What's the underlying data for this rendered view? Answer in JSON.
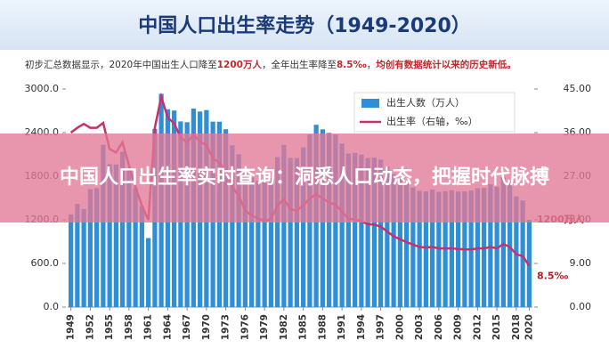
{
  "chart_data": {
    "type": "bar",
    "title": "中国人口出生率走势（1949-2020）",
    "subtitle_parts": [
      {
        "text": "初步汇总数据显示，2020年中国出生人口降至",
        "color": "#333333"
      },
      {
        "text": "1200万人",
        "color": "#c0282e"
      },
      {
        "text": "，全年出生率降至",
        "color": "#333333"
      },
      {
        "text": "8.5‰",
        "color": "#c0282e"
      },
      {
        "text": "，",
        "color": "#333333"
      },
      {
        "text": "均创有数据统计以来的历史新低。",
        "color": "#c0282e"
      }
    ],
    "x": [
      1949,
      1950,
      1951,
      1952,
      1953,
      1954,
      1955,
      1956,
      1957,
      1958,
      1959,
      1960,
      1961,
      1962,
      1963,
      1964,
      1965,
      1966,
      1967,
      1968,
      1969,
      1970,
      1971,
      1972,
      1973,
      1974,
      1975,
      1976,
      1977,
      1978,
      1979,
      1980,
      1981,
      1982,
      1983,
      1984,
      1985,
      1986,
      1987,
      1988,
      1989,
      1990,
      1991,
      1992,
      1993,
      1994,
      1995,
      1996,
      1997,
      1998,
      1999,
      2000,
      2001,
      2002,
      2003,
      2004,
      2005,
      2006,
      2007,
      2008,
      2009,
      2010,
      2011,
      2012,
      2013,
      2014,
      2015,
      2016,
      2017,
      2018,
      2019,
      2020
    ],
    "xticks": [
      1949,
      1952,
      1955,
      1958,
      1961,
      1964,
      1967,
      1970,
      1973,
      1976,
      1979,
      1982,
      1985,
      1988,
      1991,
      1994,
      1997,
      2000,
      2003,
      2006,
      2009,
      2012,
      2015,
      2018,
      2020
    ],
    "series": [
      {
        "name": "出生人数（万人）",
        "color": "#2e8fd8",
        "type": "bar",
        "values": [
          1275,
          1419,
          1349,
          1622,
          1637,
          2232,
          1965,
          1961,
          2138,
          1889,
          1635,
          1389,
          949,
          2451,
          2934,
          2721,
          2704,
          2554,
          2543,
          2731,
          2690,
          2710,
          2551,
          2550,
          2447,
          2226,
          2102,
          1849,
          1783,
          1733,
          1715,
          1776,
          2064,
          2230,
          2052,
          2050,
          2196,
          2374,
          2508,
          2445,
          2396,
          2374,
          2250,
          2113,
          2120,
          2098,
          2052,
          2057,
          2028,
          1934,
          1827,
          1771,
          1702,
          1647,
          1599,
          1593,
          1617,
          1584,
          1594,
          1608,
          1591,
          1592,
          1604,
          1635,
          1640,
          1687,
          1655,
          1786,
          1723,
          1523,
          1465,
          1200
        ]
      },
      {
        "name": "出生率（右轴，‰）",
        "color": "#c8306a",
        "type": "line",
        "axis": "y2",
        "values": [
          36,
          37,
          37.8,
          37,
          37,
          38,
          32.6,
          31.9,
          34,
          29.2,
          24.8,
          20.9,
          18,
          37,
          43.4,
          39.1,
          37.9,
          35,
          34,
          35.6,
          34.1,
          33.4,
          30.7,
          29.8,
          27.9,
          24.8,
          23,
          19.9,
          18.9,
          18.3,
          17.8,
          18.2,
          20.9,
          22.3,
          20.2,
          19.9,
          21,
          22.4,
          23.3,
          22.4,
          21.6,
          21.1,
          19.7,
          18.2,
          18.1,
          17.7,
          17.1,
          17,
          16.6,
          15.6,
          14.6,
          14,
          13.4,
          12.9,
          12.4,
          12.3,
          12.4,
          12.1,
          12.1,
          12.1,
          12,
          11.9,
          11.9,
          12.1,
          12.1,
          12.4,
          12.1,
          13,
          12.4,
          10.9,
          10.5,
          8.5
        ]
      }
    ],
    "ylim": [
      0,
      3000
    ],
    "yticks": [
      {
        "value": 0,
        "label": "0.0"
      },
      {
        "value": 600,
        "label": "600.0"
      },
      {
        "value": 1200,
        "label": "1200.0"
      },
      {
        "value": 1800,
        "label": "1800.0"
      },
      {
        "value": 2400,
        "label": "2400.0"
      },
      {
        "value": 3000,
        "label": "3000.0"
      }
    ],
    "y2lim": [
      0,
      45
    ],
    "y2ticks": [
      {
        "value": 0,
        "label": "0.00"
      },
      {
        "value": 9,
        "label": "9.00"
      },
      {
        "value": 18,
        "label": "18.00"
      },
      {
        "value": 27,
        "label": "27.00"
      },
      {
        "value": 36,
        "label": "36.00"
      },
      {
        "value": 45,
        "label": "45.00"
      }
    ],
    "annotations": [
      "1200万人",
      "8.5‰"
    ],
    "legend": "top-right",
    "grid": false
  },
  "banner": "中国人口出生率实时查询：洞悉人口动态，把握时代脉搏"
}
